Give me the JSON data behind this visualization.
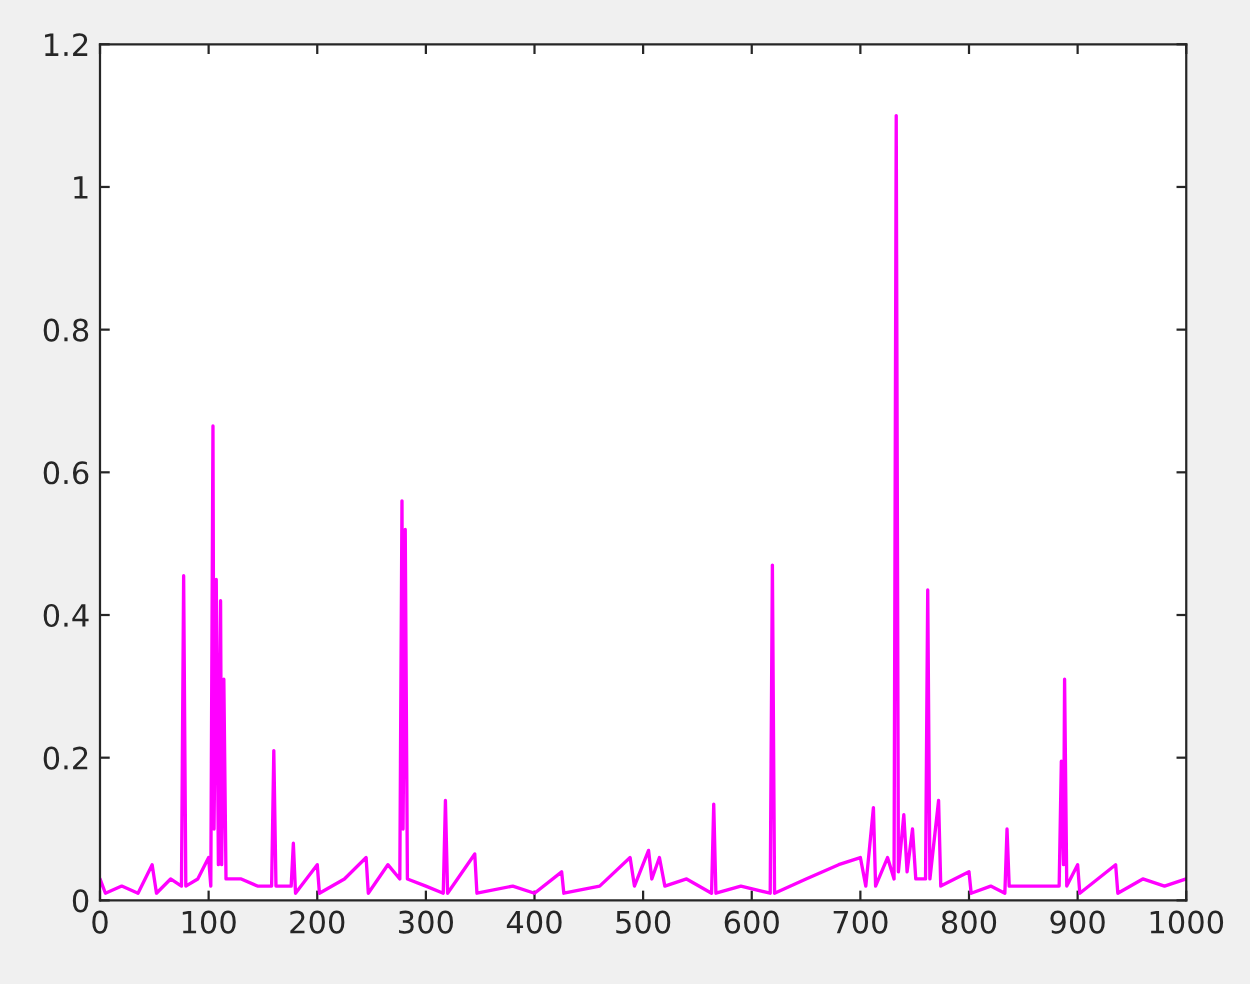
{
  "chart_data": {
    "type": "line",
    "x": [
      0,
      5,
      20,
      35,
      48,
      52,
      65,
      75,
      77,
      79,
      90,
      100,
      102,
      104,
      105,
      107,
      109,
      111,
      112,
      114,
      116,
      130,
      145,
      158,
      160,
      162,
      176,
      178,
      180,
      200,
      202,
      225,
      245,
      247,
      265,
      276,
      278,
      279,
      281,
      283,
      300,
      316,
      318,
      320,
      345,
      347,
      380,
      400,
      425,
      427,
      460,
      488,
      492,
      505,
      508,
      515,
      520,
      540,
      563,
      565,
      567,
      590,
      617,
      619,
      621,
      650,
      680,
      700,
      705,
      712,
      714,
      725,
      731,
      733,
      735,
      740,
      743,
      748,
      751,
      760,
      762,
      764,
      772,
      774,
      800,
      802,
      820,
      833,
      835,
      837,
      860,
      883,
      885,
      887,
      888,
      890,
      900,
      902,
      935,
      937,
      960,
      980,
      1000
    ],
    "series": [
      {
        "color": "#ff00ff",
        "values": [
          0.03,
          0.01,
          0.02,
          0.01,
          0.05,
          0.01,
          0.03,
          0.02,
          0.455,
          0.02,
          0.03,
          0.06,
          0.02,
          0.665,
          0.1,
          0.45,
          0.05,
          0.42,
          0.05,
          0.31,
          0.03,
          0.03,
          0.02,
          0.02,
          0.21,
          0.02,
          0.02,
          0.08,
          0.01,
          0.05,
          0.01,
          0.03,
          0.06,
          0.01,
          0.05,
          0.03,
          0.56,
          0.1,
          0.52,
          0.03,
          0.02,
          0.01,
          0.14,
          0.01,
          0.065,
          0.01,
          0.02,
          0.01,
          0.04,
          0.01,
          0.02,
          0.06,
          0.02,
          0.07,
          0.03,
          0.06,
          0.02,
          0.03,
          0.01,
          0.135,
          0.01,
          0.02,
          0.01,
          0.47,
          0.01,
          0.03,
          0.05,
          0.06,
          0.02,
          0.13,
          0.02,
          0.06,
          0.03,
          1.1,
          0.04,
          0.12,
          0.04,
          0.1,
          0.03,
          0.03,
          0.435,
          0.03,
          0.14,
          0.02,
          0.04,
          0.01,
          0.02,
          0.01,
          0.1,
          0.02,
          0.02,
          0.02,
          0.195,
          0.05,
          0.31,
          0.02,
          0.05,
          0.01,
          0.05,
          0.01,
          0.03,
          0.02,
          0.03
        ]
      }
    ],
    "xlim": [
      0,
      1000
    ],
    "xticks": [
      0,
      100,
      200,
      300,
      400,
      500,
      600,
      700,
      800,
      900,
      1000
    ],
    "ylim": [
      0,
      1.2
    ],
    "yticks": [
      0,
      0.2,
      0.4,
      0.6,
      0.8,
      1,
      1.2
    ],
    "grid": false,
    "marker": "none",
    "line_style": "solid"
  }
}
